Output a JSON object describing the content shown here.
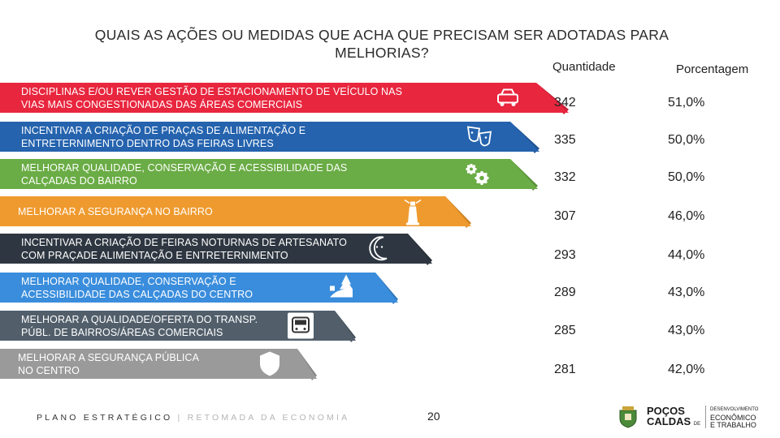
{
  "title_line1": "QUAIS AS AÇÕES OU MEDIDAS QUE ACHA QUE PRECISAM SER ADOTADAS PARA",
  "title_line2": "MELHORIAS?",
  "headers": {
    "quantity": "Quantidade",
    "percentage": "Porcentagem"
  },
  "chart_data": {
    "type": "bar",
    "title": "QUAIS AS AÇÕES OU MEDIDAS QUE ACHA QUE PRECISAM SER ADOTADAS PARA MELHORIAS?",
    "categories": [
      "DISCIPLINAS E/OU REVER GESTÃO DE ESTACIONAMENTO DE VEÍCULO NAS VIAS MAIS CONGESTIONADAS DAS ÁREAS COMERCIAIS",
      "INCENTIVAR A CRIAÇÃO DE PRAÇAS DE ALIMENTAÇÃO E ENTRETERNIMENTO DENTRO DAS FEIRAS LIVRES",
      "MELHORAR QUALIDADE, CONSERVAÇÃO E ACESSIBILIDADE DAS CALÇADAS DO BAIRRO",
      "MELHORAR A SEGURANÇA NO BAIRRO",
      "INCENTIVAR A CRIAÇÃO DE FEIRAS NOTURNAS DE ARTESANATO COM PRAÇADE ALIMENTAÇÃO E ENTRETERNIMENTO",
      "MELHORAR QUALIDADE, CONSERVAÇÃO E ACESSIBILIDADE DAS CALÇADAS DO CENTRO",
      "MELHORAR A QUALIDADE/OFERTA DO TRANSP. PÚBL. DE BAIRROS/ÁREAS COMERCIAIS",
      "MELHORAR A SEGURANÇA PÚBLICA NO CENTRO"
    ],
    "series": [
      {
        "name": "Quantidade",
        "values": [
          342,
          335,
          332,
          307,
          293,
          289,
          285,
          281
        ]
      },
      {
        "name": "Porcentagem",
        "values": [
          51.0,
          50.0,
          50.0,
          46.0,
          44.0,
          43.0,
          43.0,
          42.0
        ]
      }
    ],
    "bars": [
      {
        "line1": "DISCIPLINAS E/OU REVER GESTÃO DE ESTACIONAMENTO DE VEÍCULO NAS",
        "line2": "VIAS MAIS CONGESTIONADAS DAS ÁREAS COMERCIAIS",
        "quantity": "342",
        "percentage": "51,0%",
        "color": "#e8263e",
        "icon": "car-icon"
      },
      {
        "line1": "INCENTIVAR A CRIAÇÃO DE PRAÇAS DE ALIMENTAÇÃO E",
        "line2": "ENTRETERNIMENTO DENTRO DAS FEIRAS LIVRES",
        "quantity": "335",
        "percentage": "50,0%",
        "color": "#2563ae",
        "icon": "theater-masks-icon"
      },
      {
        "line1": "MELHORAR QUALIDADE, CONSERVAÇÃO E ACESSIBILIDADE DAS",
        "line2": "CALÇADAS DO BAIRRO",
        "quantity": "332",
        "percentage": "50,0%",
        "color": "#6aac45",
        "icon": "gears-icon"
      },
      {
        "line1": "MELHORAR A SEGURANÇA NO BAIRRO",
        "line2": "",
        "quantity": "307",
        "percentage": "46,0%",
        "color": "#ef9a2e",
        "icon": "lighthouse-icon"
      },
      {
        "line1": "INCENTIVAR A CRIAÇÃO DE FEIRAS NOTURNAS DE ARTESANATO",
        "line2": "COM PRAÇADE ALIMENTAÇÃO E ENTRETERNIMENTO",
        "quantity": "293",
        "percentage": "44,0%",
        "color": "#2e3741",
        "icon": "moon-icon"
      },
      {
        "line1": "MELHORAR QUALIDADE, CONSERVAÇÃO E",
        "line2": "ACESSIBILIDADE DAS CALÇADAS DO CENTRO",
        "quantity": "289",
        "percentage": "43,0%",
        "color": "#3a8ddc",
        "icon": "landscape-icon"
      },
      {
        "line1": "MELHORAR A QUALIDADE/OFERTA DO TRANSP.",
        "line2": "PÚBL. DE BAIRROS/ÁREAS COMERCIAIS",
        "quantity": "285",
        "percentage": "43,0%",
        "color": "#525f6b",
        "icon": "bus-icon"
      },
      {
        "line1": "MELHORAR A SEGURANÇA PÚBLICA",
        "line2": "NO CENTRO",
        "quantity": "281",
        "percentage": "42,0%",
        "color": "#9a9a9a",
        "icon": "shield-icon"
      }
    ]
  },
  "footer": {
    "main": "PLANO ESTRATÉGICO",
    "separator": " | ",
    "sub": "RETOMADA DA ECONOMIA"
  },
  "page_number": "20",
  "logo": {
    "city_line1": "POÇOS",
    "city_de": "DE",
    "city_line2": "CALDAS",
    "dept_line1": "DESENVOLVIMENTO",
    "dept_line2": "ECONÔMICO",
    "dept_line3": "E TRABALHO"
  }
}
